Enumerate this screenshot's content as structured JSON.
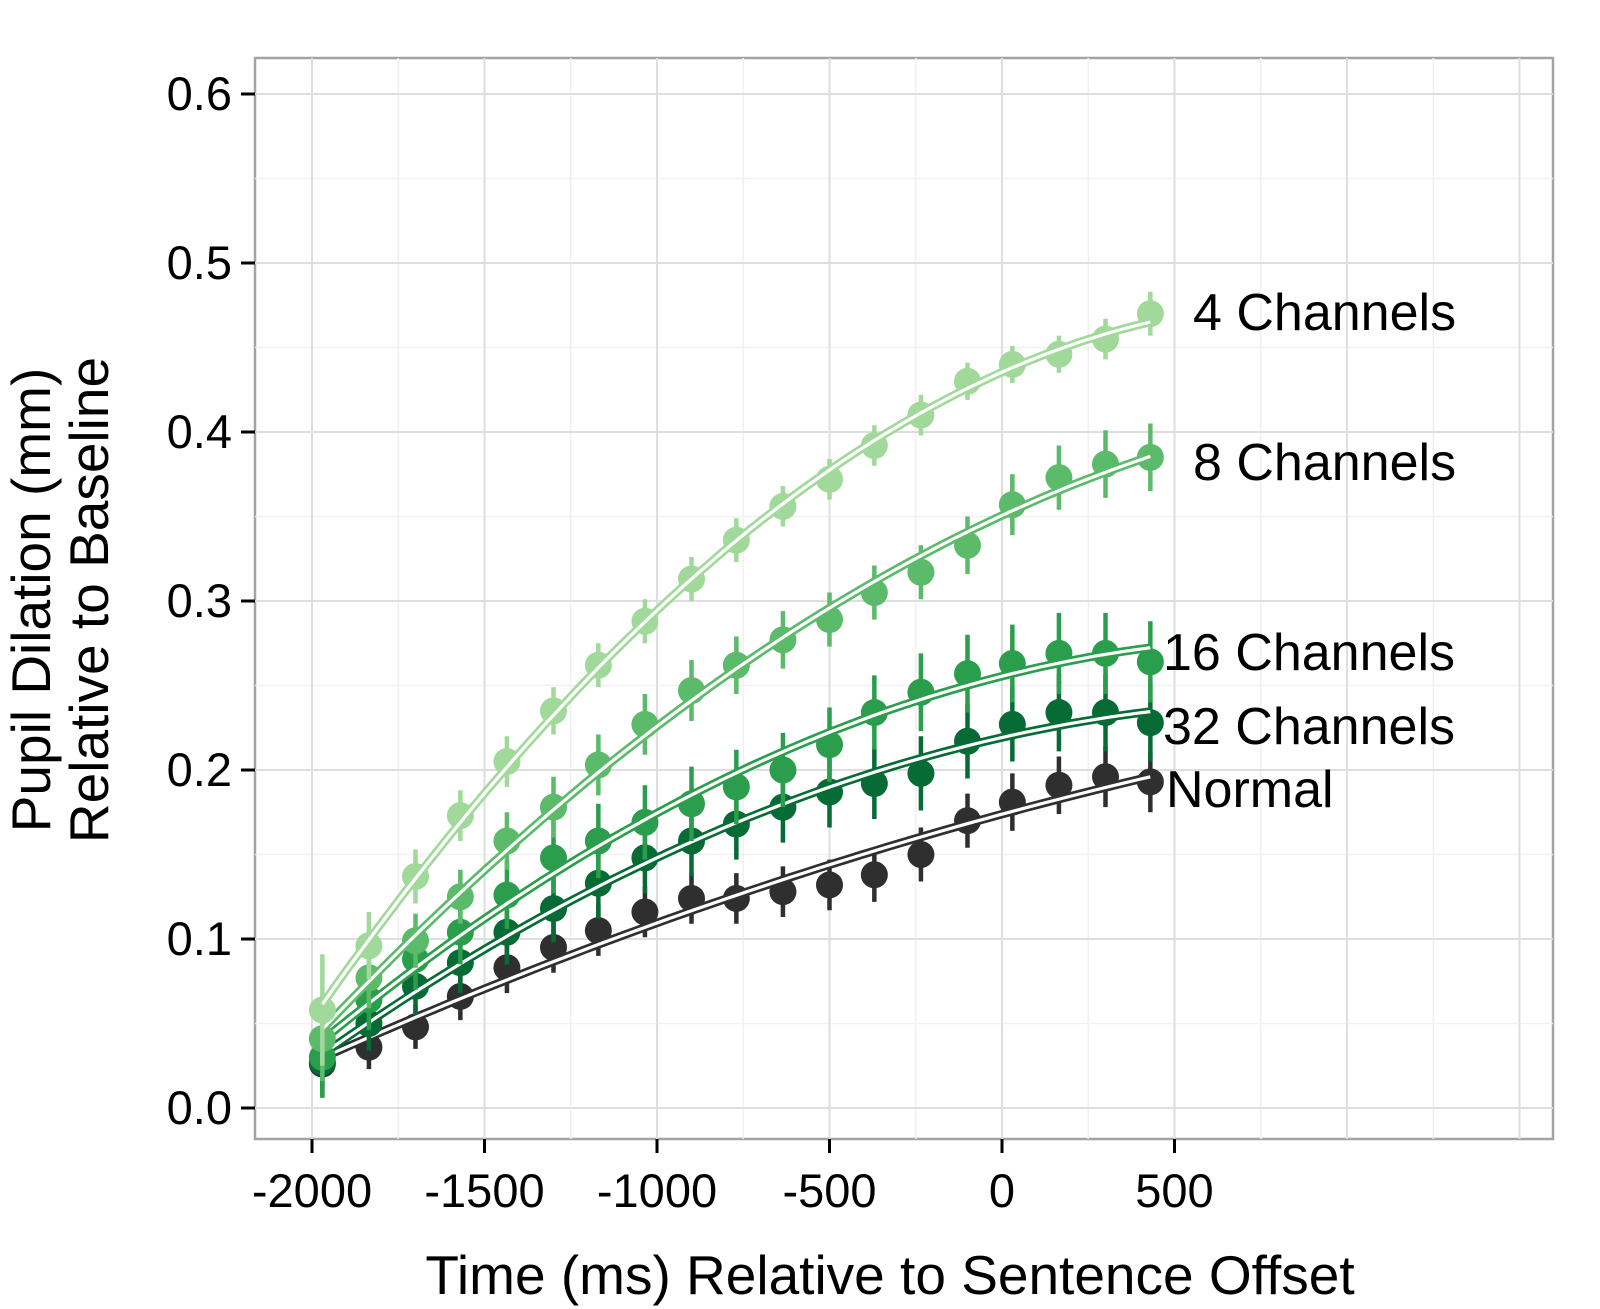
{
  "figure": {
    "kind": "scatter-plot-with-fitted-curves",
    "background": "#ffffff",
    "panel_border_color": "#a3a3a3",
    "grid_major_color": "#dedede",
    "grid_minor_color": "#f1f1f1",
    "tick_color": "#000000"
  },
  "axes": {
    "x_title": "Time (ms) Relative to Sentence Offset",
    "y_title_line1": "Pupil Dilation (mm)",
    "y_title_line2": "Relative to Baseline",
    "x_tick_labels": [
      "-2000",
      "-1500",
      "-1000",
      "-500",
      "0",
      "500"
    ],
    "x_tick_values": [
      -2000,
      -1500,
      -1000,
      -500,
      0,
      500
    ],
    "y_tick_labels": [
      "0.0",
      "0.1",
      "0.2",
      "0.3",
      "0.4",
      "0.5",
      "0.6"
    ],
    "y_tick_values": [
      0.0,
      0.1,
      0.2,
      0.3,
      0.4,
      0.5,
      0.6
    ],
    "x_minor_step": 250,
    "y_minor_step": 0.05,
    "y_range_shown": [
      0.0,
      0.6
    ],
    "x_range_shown": [
      -2000,
      500
    ],
    "grid": true
  },
  "chart_data": {
    "type": "scatter",
    "title": "",
    "xlabel": "Time (ms) Relative to Sentence Offset",
    "ylabel_line1": "Pupil Dilation (mm)",
    "ylabel_line2": "Relative to Baseline",
    "xlim": [
      -2165,
      1600
    ],
    "ylim": [
      -0.02,
      0.625
    ],
    "legend_position": "direct-labels-right",
    "x": [
      -1970,
      -1835,
      -1700,
      -1570,
      -1435,
      -1300,
      -1170,
      -1035,
      -900,
      -770,
      -635,
      -500,
      -370,
      -235,
      -100,
      30,
      165,
      300,
      430
    ],
    "series": [
      {
        "name": "normal",
        "label": "Normal",
        "color": "#2f2f2f",
        "values": [
          0.026,
          0.036,
          0.048,
          0.066,
          0.083,
          0.095,
          0.105,
          0.116,
          0.124,
          0.124,
          0.128,
          0.132,
          0.138,
          0.15,
          0.17,
          0.181,
          0.191,
          0.196,
          0.193
        ],
        "errors": [
          0.014,
          0.013,
          0.013,
          0.014,
          0.015,
          0.015,
          0.015,
          0.015,
          0.015,
          0.015,
          0.015,
          0.015,
          0.016,
          0.016,
          0.016,
          0.017,
          0.017,
          0.018,
          0.018
        ]
      },
      {
        "name": "32-channels",
        "label": "32 Channels",
        "color": "#076b35",
        "values": [
          0.027,
          0.05,
          0.072,
          0.086,
          0.104,
          0.118,
          0.133,
          0.148,
          0.158,
          0.168,
          0.178,
          0.187,
          0.192,
          0.198,
          0.217,
          0.227,
          0.234,
          0.234,
          0.228
        ],
        "errors": [
          0.02,
          0.016,
          0.017,
          0.018,
          0.019,
          0.02,
          0.021,
          0.021,
          0.021,
          0.021,
          0.021,
          0.021,
          0.021,
          0.022,
          0.022,
          0.022,
          0.023,
          0.023,
          0.023
        ]
      },
      {
        "name": "16-channels",
        "label": "16 Channels",
        "color": "#2b9e4d",
        "values": [
          0.03,
          0.064,
          0.088,
          0.104,
          0.126,
          0.148,
          0.158,
          0.169,
          0.18,
          0.19,
          0.2,
          0.215,
          0.234,
          0.246,
          0.257,
          0.263,
          0.269,
          0.269,
          0.264
        ],
        "errors": [
          0.024,
          0.018,
          0.018,
          0.019,
          0.02,
          0.021,
          0.022,
          0.022,
          0.022,
          0.022,
          0.022,
          0.022,
          0.022,
          0.023,
          0.023,
          0.023,
          0.024,
          0.024,
          0.024
        ]
      },
      {
        "name": "8-channels",
        "label": "8 Channels",
        "color": "#5cba6b",
        "values": [
          0.041,
          0.077,
          0.099,
          0.125,
          0.158,
          0.178,
          0.203,
          0.227,
          0.247,
          0.262,
          0.277,
          0.289,
          0.305,
          0.317,
          0.333,
          0.357,
          0.373,
          0.381,
          0.385
        ],
        "errors": [
          0.025,
          0.018,
          0.016,
          0.016,
          0.017,
          0.018,
          0.018,
          0.018,
          0.018,
          0.017,
          0.017,
          0.016,
          0.016,
          0.016,
          0.017,
          0.018,
          0.019,
          0.02,
          0.02
        ]
      },
      {
        "name": "4-channels",
        "label": "4 Channels",
        "color": "#a1d99b",
        "values": [
          0.058,
          0.096,
          0.137,
          0.173,
          0.205,
          0.235,
          0.262,
          0.288,
          0.313,
          0.336,
          0.356,
          0.372,
          0.392,
          0.41,
          0.43,
          0.44,
          0.446,
          0.455,
          0.47
        ],
        "errors": [
          0.033,
          0.02,
          0.016,
          0.015,
          0.015,
          0.014,
          0.013,
          0.013,
          0.013,
          0.013,
          0.012,
          0.012,
          0.012,
          0.012,
          0.011,
          0.011,
          0.011,
          0.012,
          0.013
        ]
      }
    ]
  }
}
